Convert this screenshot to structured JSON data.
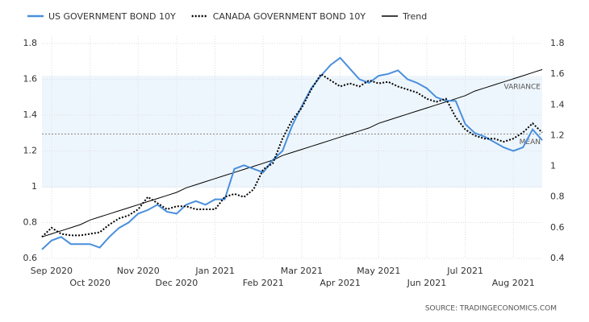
{
  "chart_data": {
    "type": "line",
    "categories": [
      null,
      "Sep 2020",
      null,
      null,
      null,
      "Oct 2020",
      null,
      null,
      null,
      null,
      "Nov 2020",
      null,
      null,
      null,
      "Dec 2020",
      null,
      null,
      null,
      "Jan 2021",
      null,
      null,
      null,
      null,
      "Feb 2021",
      null,
      null,
      null,
      "Mar 2021",
      null,
      null,
      null,
      "Apr 2021",
      null,
      null,
      null,
      "May 2021",
      null,
      null,
      null,
      null,
      "Jun 2021",
      null,
      null,
      null,
      "Jul 2021",
      null,
      null,
      null,
      null,
      "Aug 2021",
      null,
      null,
      null
    ],
    "series": [
      {
        "name": "US GOVERNMENT BOND 10Y",
        "color": "#4a8fdc",
        "style": "solid",
        "values": [
          0.65,
          0.7,
          0.72,
          0.68,
          0.68,
          0.68,
          0.66,
          0.72,
          0.77,
          0.8,
          0.85,
          0.87,
          0.9,
          0.86,
          0.85,
          0.9,
          0.92,
          0.9,
          0.93,
          0.93,
          1.1,
          1.12,
          1.1,
          1.08,
          1.15,
          1.2,
          1.34,
          1.45,
          1.55,
          1.62,
          1.68,
          1.72,
          1.66,
          1.6,
          1.58,
          1.62,
          1.63,
          1.65,
          1.6,
          1.58,
          1.55,
          1.5,
          1.48,
          1.48,
          1.35,
          1.3,
          1.28,
          1.25,
          1.22,
          1.2,
          1.22,
          1.32,
          1.26
        ]
      },
      {
        "name": "CANADA GOVERNMENT BOND 10Y",
        "color": "#000000",
        "style": "dotted",
        "axis": "y2",
        "values": [
          0.54,
          0.6,
          0.56,
          0.55,
          0.55,
          0.56,
          0.57,
          0.62,
          0.66,
          0.68,
          0.72,
          0.8,
          0.76,
          0.72,
          0.74,
          0.74,
          0.72,
          0.72,
          0.72,
          0.8,
          0.82,
          0.8,
          0.85,
          0.98,
          1.02,
          1.18,
          1.3,
          1.38,
          1.5,
          1.6,
          1.56,
          1.52,
          1.54,
          1.52,
          1.56,
          1.54,
          1.55,
          1.52,
          1.5,
          1.48,
          1.44,
          1.42,
          1.44,
          1.32,
          1.24,
          1.2,
          1.18,
          1.18,
          1.16,
          1.18,
          1.22,
          1.28,
          1.22
        ]
      },
      {
        "name": "Trend",
        "color": "#000000",
        "style": "thin",
        "axis": "y2",
        "values": [
          0.54,
          0.56,
          0.58,
          0.6,
          0.62,
          0.65,
          0.67,
          0.69,
          0.71,
          0.73,
          0.75,
          0.77,
          0.79,
          0.81,
          0.83,
          0.86,
          0.88,
          0.9,
          0.92,
          0.94,
          0.96,
          0.98,
          1.0,
          1.02,
          1.04,
          1.07,
          1.09,
          1.11,
          1.13,
          1.15,
          1.17,
          1.19,
          1.21,
          1.23,
          1.25,
          1.28,
          1.3,
          1.32,
          1.34,
          1.36,
          1.38,
          1.4,
          1.42,
          1.44,
          1.46,
          1.49,
          1.51,
          1.53,
          1.55,
          1.57,
          1.59,
          1.61,
          1.63
        ]
      }
    ],
    "ylim": [
      0.6,
      1.8
    ],
    "yticks": [
      0.6,
      0.8,
      1,
      1.2,
      1.4,
      1.6,
      1.8
    ],
    "y2lim": [
      0.4,
      1.8
    ],
    "y2ticks": [
      0.4,
      0.6,
      0.8,
      1,
      1.2,
      1.4,
      1.6,
      1.8
    ],
    "grid": true,
    "variance": {
      "label": "VARIANCE",
      "range": [
        0.86,
        1.59
      ],
      "color": "#eef6fd"
    },
    "mean": {
      "label": "MEAN",
      "value": 1.21
    },
    "source": "SOURCE:  TRADINGECONOMICS.COM"
  }
}
